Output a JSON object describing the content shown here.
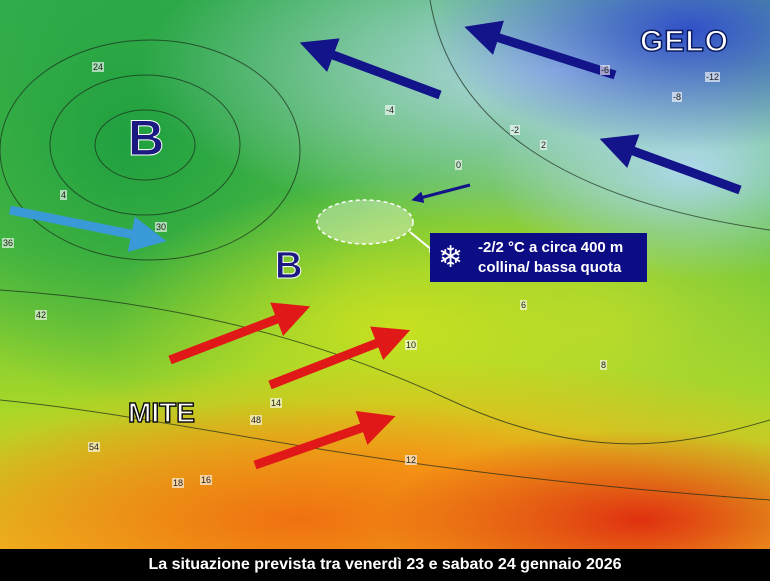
{
  "labels": {
    "gelo": "GELO",
    "mite": "MITE",
    "low_pressure_1": "B",
    "low_pressure_2": "B"
  },
  "callout": {
    "icon": "snowflake-icon",
    "line1": "-2/2 °C a circa 400 m",
    "line2": "collina/ bassa quota"
  },
  "caption": "La situazione prevista tra venerdì 23 e sabato 24 gennaio 2026",
  "isotherm_labels": [
    "24",
    "30",
    "36",
    "4",
    "2",
    "0",
    "-2",
    "-4",
    "-6",
    "-8",
    "-12",
    "6",
    "8",
    "10",
    "12",
    "14",
    "16",
    "18",
    "42",
    "48",
    "54"
  ],
  "colors": {
    "cold_arrow": "#14148a",
    "warm_arrow": "#e01818",
    "atlantic_arrow": "#3a9ad8",
    "callout_bg": "#0c0c84"
  }
}
